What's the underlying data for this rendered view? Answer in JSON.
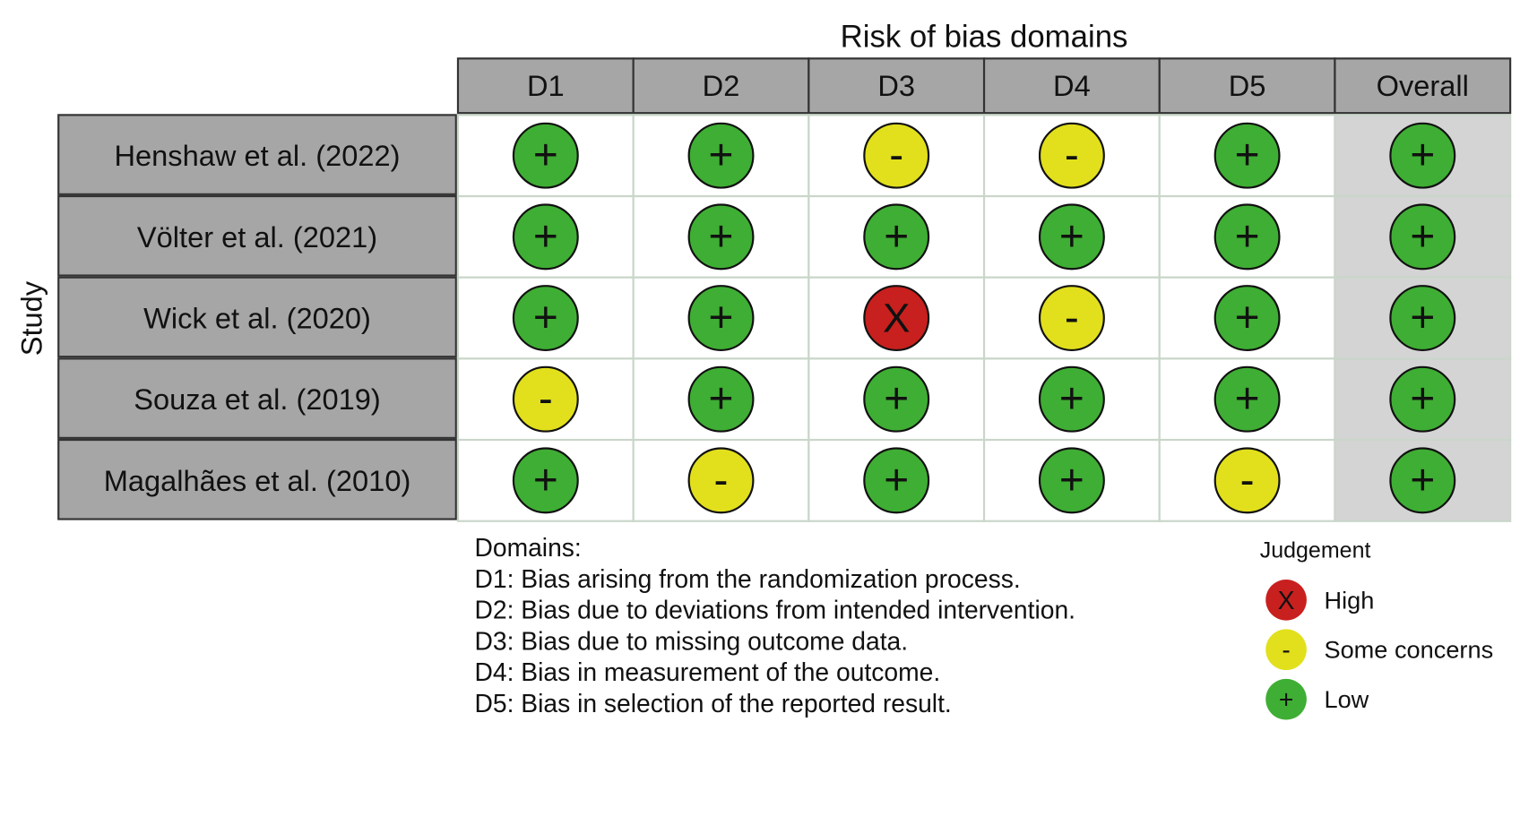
{
  "title": "Risk of bias domains",
  "axis_label": "Study",
  "domains": [
    "D1",
    "D2",
    "D3",
    "D4",
    "D5",
    "Overall"
  ],
  "studies": [
    {
      "name": "Henshaw et al. (2022)",
      "judgements": [
        "+",
        "+",
        "-",
        "-",
        "+",
        "+"
      ]
    },
    {
      "name": "Völter et al. (2021)",
      "judgements": [
        "+",
        "+",
        "+",
        "+",
        "+",
        "+"
      ]
    },
    {
      "name": "Wick et al. (2020)",
      "judgements": [
        "+",
        "+",
        "X",
        "-",
        "+",
        "+"
      ]
    },
    {
      "name": "Souza et al. (2019)",
      "judgements": [
        "-",
        "+",
        "+",
        "+",
        "+",
        "+"
      ]
    },
    {
      "name": "Magalhães et al. (2010)",
      "judgements": [
        "+",
        "-",
        "+",
        "+",
        "-",
        "+"
      ]
    }
  ],
  "domain_notes": {
    "heading": "Domains:",
    "lines": [
      "D1: Bias arising from the randomization process.",
      "D2: Bias due to deviations from intended intervention.",
      "D3: Bias due to missing outcome data.",
      "D4: Bias in measurement of the outcome.",
      "D5: Bias in selection of the reported result."
    ]
  },
  "legend": {
    "title": "Judgement",
    "items": [
      {
        "symbol": "X",
        "label": "High",
        "color": "#c8201e"
      },
      {
        "symbol": "-",
        "label": "Some concerns",
        "color": "#e2e01c"
      },
      {
        "symbol": "+",
        "label": "Low",
        "color": "#3fae34"
      }
    ]
  }
}
